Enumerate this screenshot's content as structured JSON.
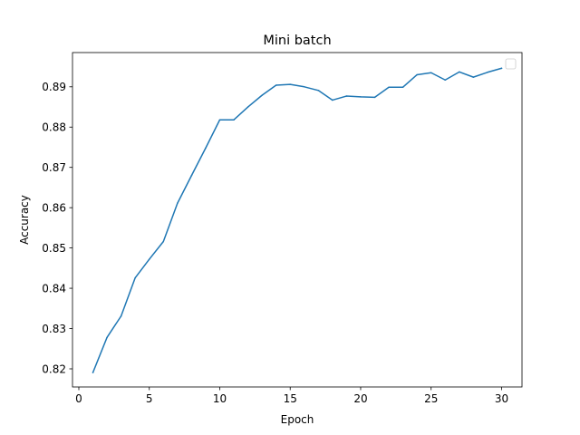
{
  "chart_data": {
    "type": "line",
    "title": "Mini batch",
    "xlabel": "Epoch",
    "ylabel": "Accuracy",
    "xlim": [
      -0.45,
      31.45
    ],
    "ylim": [
      0.8155,
      0.8985
    ],
    "xticks": [
      0,
      5,
      10,
      15,
      20,
      25,
      30
    ],
    "yticks": [
      0.82,
      0.83,
      0.84,
      0.85,
      0.86,
      0.87,
      0.88,
      0.89
    ],
    "ytick_labels": [
      "0.82",
      "0.83",
      "0.84",
      "0.85",
      "0.86",
      "0.87",
      "0.88",
      "0.89"
    ],
    "grid": false,
    "legend": {
      "position": "top-right",
      "entries": []
    },
    "series": [
      {
        "color": "#1f77b4",
        "x": [
          1,
          2,
          3,
          4,
          5,
          6,
          7,
          8,
          9,
          10,
          11,
          12,
          13,
          14,
          15,
          16,
          17,
          18,
          19,
          20,
          21,
          22,
          23,
          24,
          25,
          26,
          27,
          28,
          29,
          30
        ],
        "values": [
          0.8191,
          0.8278,
          0.8331,
          0.8426,
          0.8472,
          0.8516,
          0.8611,
          0.868,
          0.8748,
          0.8818,
          0.8818,
          0.885,
          0.8879,
          0.8904,
          0.8906,
          0.89,
          0.8891,
          0.8867,
          0.8877,
          0.8875,
          0.8874,
          0.8899,
          0.8899,
          0.893,
          0.8935,
          0.8917,
          0.8937,
          0.8924,
          0.8936,
          0.8946
        ]
      }
    ]
  }
}
